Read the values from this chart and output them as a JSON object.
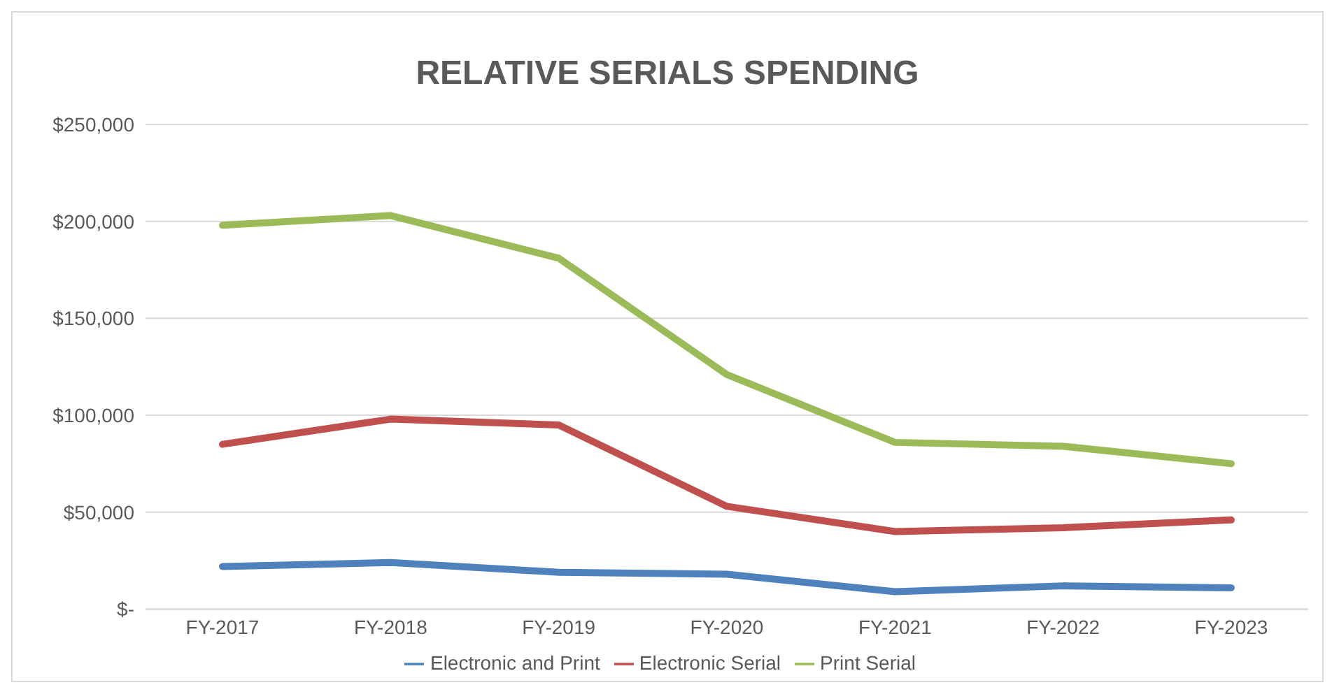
{
  "chart_data": {
    "type": "line",
    "title": "RELATIVE SERIALS SPENDING",
    "categories": [
      "FY-2017",
      "FY-2018",
      "FY-2019",
      "FY-2020",
      "FY-2021",
      "FY-2022",
      "FY-2023"
    ],
    "series": [
      {
        "name": "Electronic and Print",
        "color": "#4f81bd",
        "values": [
          22000,
          24000,
          19000,
          18000,
          9000,
          12000,
          11000
        ]
      },
      {
        "name": "Electronic Serial",
        "color": "#c0504d",
        "values": [
          85000,
          98000,
          95000,
          53000,
          40000,
          42000,
          46000
        ]
      },
      {
        "name": "Print Serial",
        "color": "#9bbb59",
        "values": [
          198000,
          203000,
          181000,
          121000,
          86000,
          84000,
          75000
        ]
      }
    ],
    "ylim": [
      0,
      250000
    ],
    "yticks": [
      {
        "value": 0,
        "label": "$-"
      },
      {
        "value": 50000,
        "label": "$50,000"
      },
      {
        "value": 100000,
        "label": "$100,000"
      },
      {
        "value": 150000,
        "label": "$150,000"
      },
      {
        "value": 200000,
        "label": "$200,000"
      },
      {
        "value": 250000,
        "label": "$250,000"
      }
    ],
    "grid": "y",
    "legend": "bottom",
    "marker": "none",
    "line_style": "solid"
  }
}
